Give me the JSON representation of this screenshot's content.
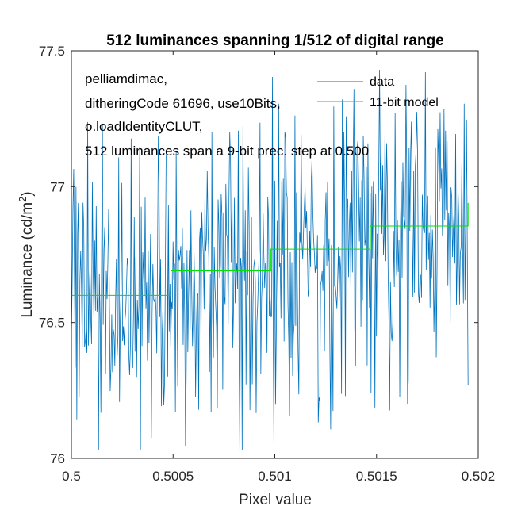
{
  "chart_data": {
    "type": "line",
    "title": "512 luminances spanning 1/512 of digital range",
    "xlabel": "Pixel value",
    "ylabel_prefix": "Luminance (cd/m",
    "ylabel_sup": "2",
    "ylabel_suffix": ")",
    "xlim": [
      0.5,
      0.502
    ],
    "ylim": [
      76.0,
      77.5
    ],
    "xticks": [
      {
        "value": 0.5,
        "label": "0.5"
      },
      {
        "value": 0.5005,
        "label": "0.5005"
      },
      {
        "value": 0.501,
        "label": "0.501"
      },
      {
        "value": 0.5015,
        "label": "0.5015"
      },
      {
        "value": 0.502,
        "label": "0.502"
      }
    ],
    "yticks": [
      {
        "value": 76.0,
        "label": "76"
      },
      {
        "value": 76.5,
        "label": "76.5"
      },
      {
        "value": 77.0,
        "label": "77"
      },
      {
        "value": 77.5,
        "label": "77.5"
      }
    ],
    "grid": false,
    "annotation_lines": [
      "pelliamdimac,",
      "ditheringCode 61696, use10Bits,",
      "o.loadIdentityCLUT,",
      "512 luminances span a 9-bit prec. step at 0.500"
    ],
    "legend": {
      "placement": "top-right",
      "entries": [
        {
          "name": "data",
          "color": "#0072BD"
        },
        {
          "name": "11-bit model",
          "color": "#00E000"
        }
      ]
    },
    "series": [
      {
        "name": "data",
        "color": "#0072BD",
        "x_start": 0.5,
        "x_end": 0.50195,
        "n_points": 512,
        "summary": {
          "mean_approx": 76.7,
          "min_approx": 76.01,
          "max_approx": 77.45
        }
      },
      {
        "name": "11-bit model",
        "color": "#00E000",
        "step_x": [
          0.5,
          0.50049,
          0.50098,
          0.50147,
          0.50195
        ],
        "step_y": [
          76.6,
          76.69,
          76.77,
          76.855,
          76.94
        ]
      }
    ]
  }
}
